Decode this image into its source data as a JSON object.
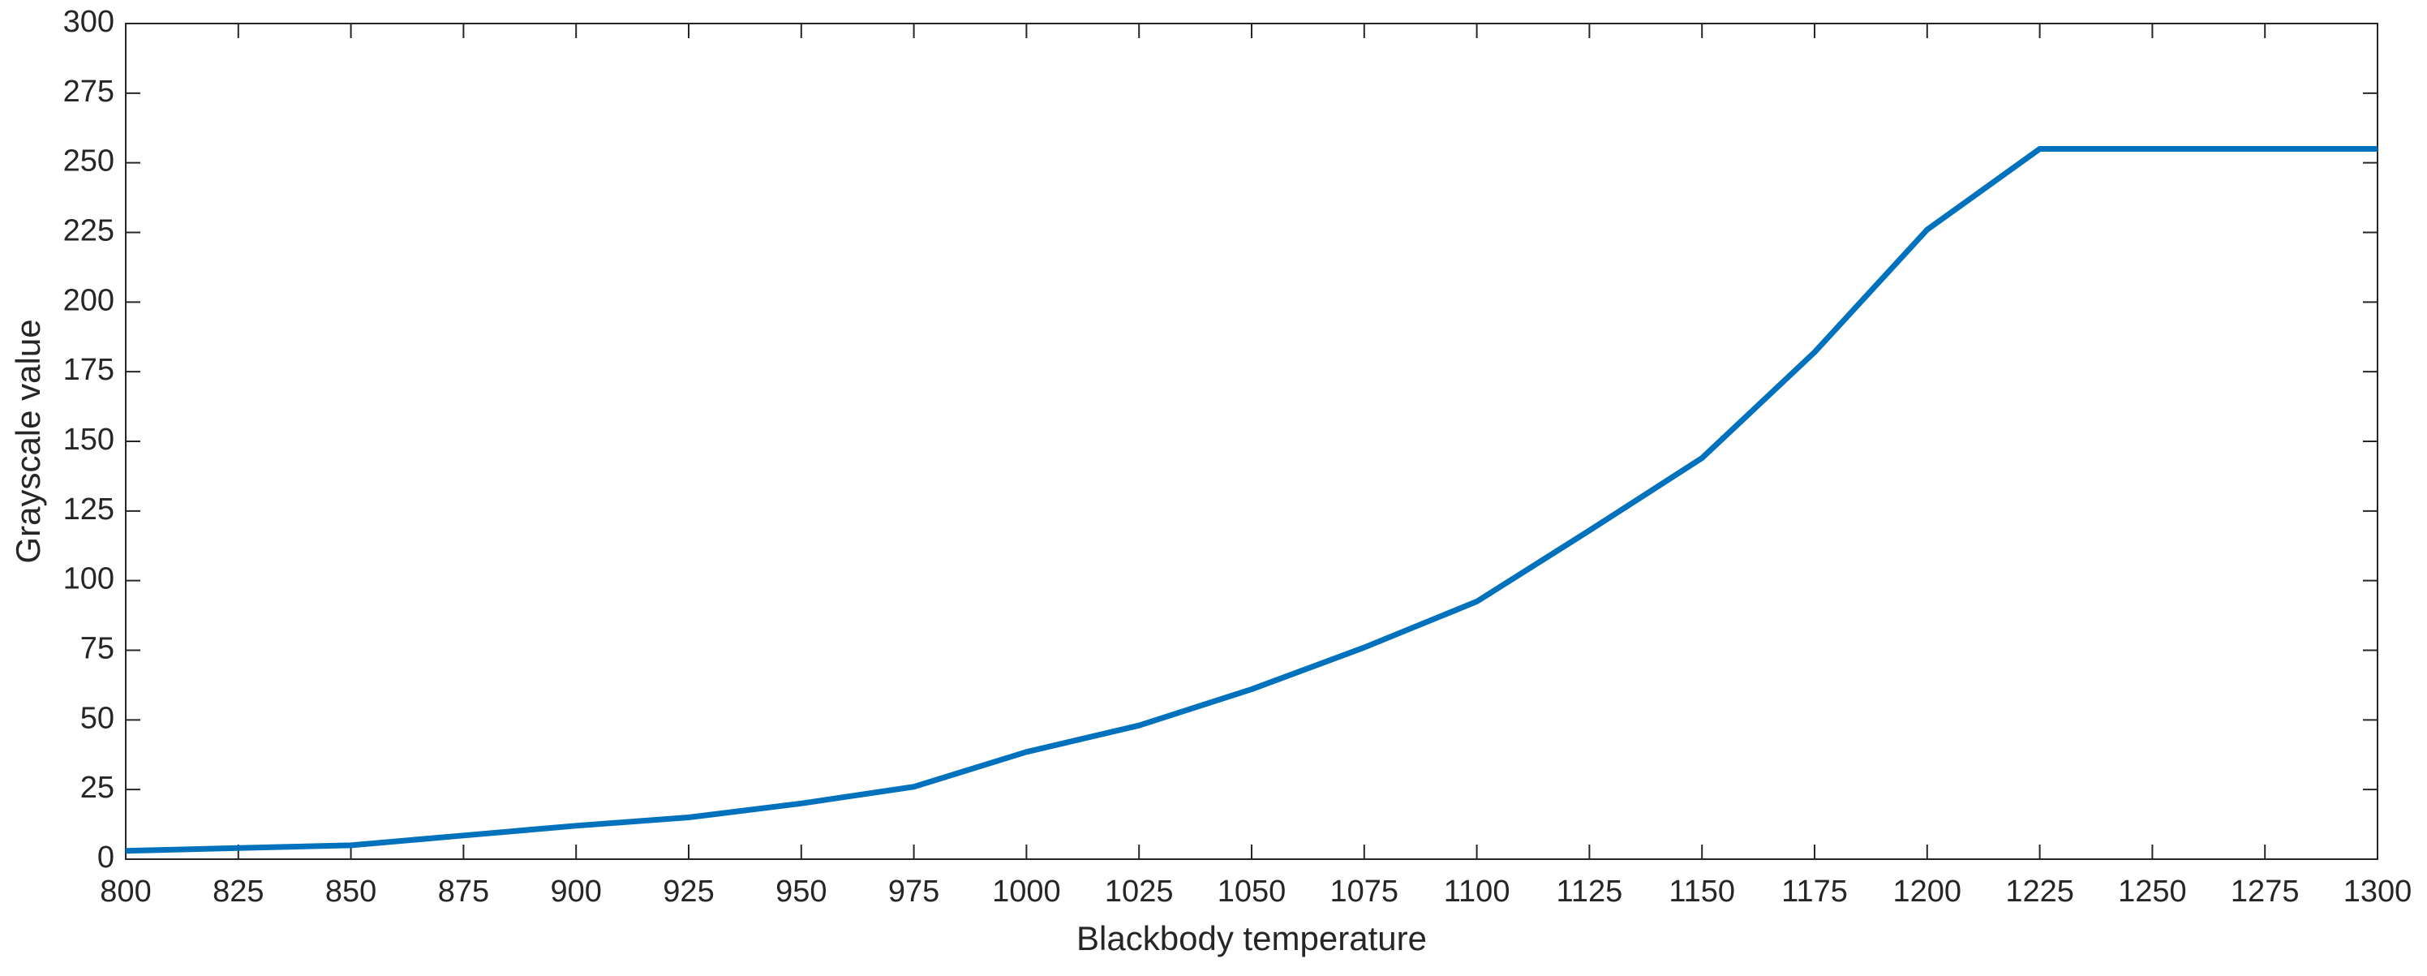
{
  "chart_data": {
    "type": "line",
    "x_label": "Blackbody temperature",
    "y_label": "Grayscale value",
    "x": [
      800,
      825,
      850,
      875,
      900,
      925,
      950,
      975,
      1000,
      1025,
      1050,
      1075,
      1100,
      1125,
      1150,
      1175,
      1200,
      1225,
      1250,
      1275,
      1300
    ],
    "series": [
      {
        "color": "#0072bd",
        "values": [
          3,
          4,
          5,
          8.5,
          12,
          15,
          20,
          26,
          38.5,
          48,
          61,
          76,
          92.5,
          118,
          144,
          182,
          226,
          255,
          255,
          255,
          255
        ]
      }
    ],
    "xlim": [
      800,
      1300
    ],
    "xticks": [
      800,
      825,
      850,
      875,
      900,
      925,
      950,
      975,
      1000,
      1025,
      1050,
      1075,
      1100,
      1125,
      1150,
      1175,
      1200,
      1225,
      1250,
      1275,
      1300
    ],
    "ylim": [
      0,
      300
    ],
    "yticks": [
      0,
      25,
      50,
      75,
      100,
      125,
      150,
      175,
      200,
      225,
      250,
      275,
      300
    ],
    "grid": false
  }
}
